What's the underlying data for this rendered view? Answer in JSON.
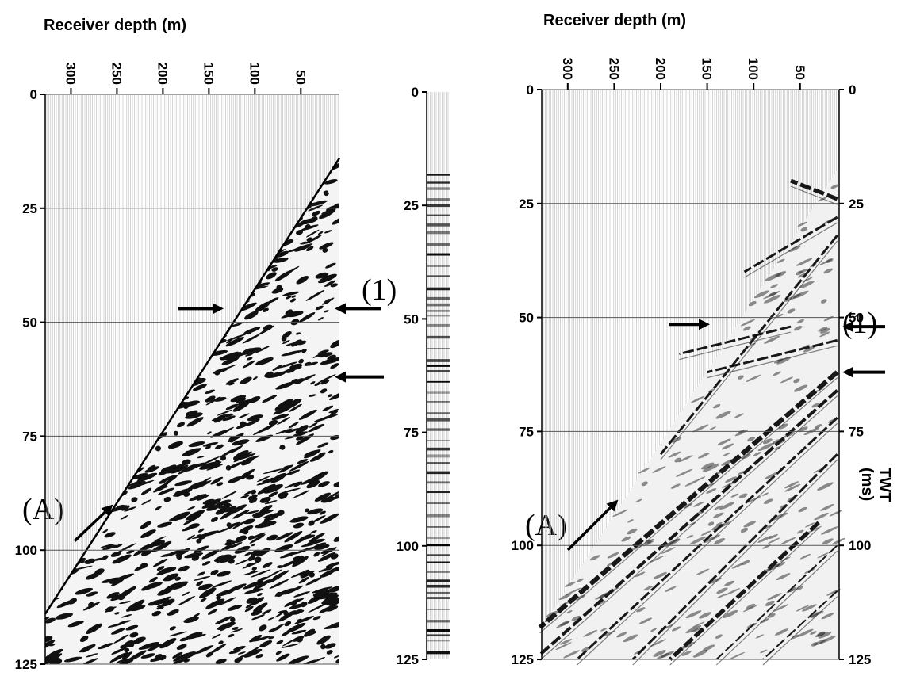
{
  "chart_data": [
    {
      "type": "heatmap",
      "name": "left-panel",
      "xlabel": "Receiver depth (m)",
      "x_ticks": [
        300,
        250,
        200,
        150,
        100,
        50
      ],
      "xlim": [
        328,
        8
      ],
      "ylim": [
        0,
        125
      ],
      "y_ticks": [
        0,
        25,
        50,
        75,
        100,
        125
      ],
      "y_ticks_side": "left",
      "grid": "horizontal",
      "first_break": [
        [
          8,
          14
        ],
        [
          328,
          114
        ]
      ],
      "annotations": [
        {
          "text": "(1)",
          "arrow_time": 47
        },
        {
          "text": "",
          "arrow_time": 62
        },
        {
          "text": "(A)",
          "arrow_depth": 250,
          "arrow_time": 90
        }
      ]
    },
    {
      "type": "heatmap",
      "name": "middle-trace-panel",
      "ylim": [
        0,
        125
      ],
      "y_ticks": [
        0,
        25,
        50,
        75,
        100,
        125
      ],
      "y_ticks_side": "left"
    },
    {
      "type": "heatmap",
      "name": "right-panel",
      "xlabel": "Receiver depth (m)",
      "x_ticks": [
        300,
        250,
        200,
        150,
        100,
        50
      ],
      "xlim": [
        328,
        8
      ],
      "ylim": [
        0,
        125
      ],
      "y_ticks": [
        0,
        25,
        50,
        75,
        100,
        125
      ],
      "y_ticks_side": "both",
      "ylabel_right": "TWT (ms)",
      "grid": "horizontal",
      "annotations": [
        {
          "text": "(1)",
          "arrow_time": 52
        },
        {
          "text": "",
          "arrow_time": 62
        },
        {
          "text": "(A)",
          "arrow_depth": 250,
          "arrow_time": 90
        }
      ]
    }
  ],
  "labels": {
    "left_xlabel": "Receiver depth (m)",
    "right_xlabel": "Receiver depth (m)",
    "twt": "TWT",
    "ms": "(ms)",
    "ann_1": "(1)",
    "ann_A": "(A)"
  }
}
